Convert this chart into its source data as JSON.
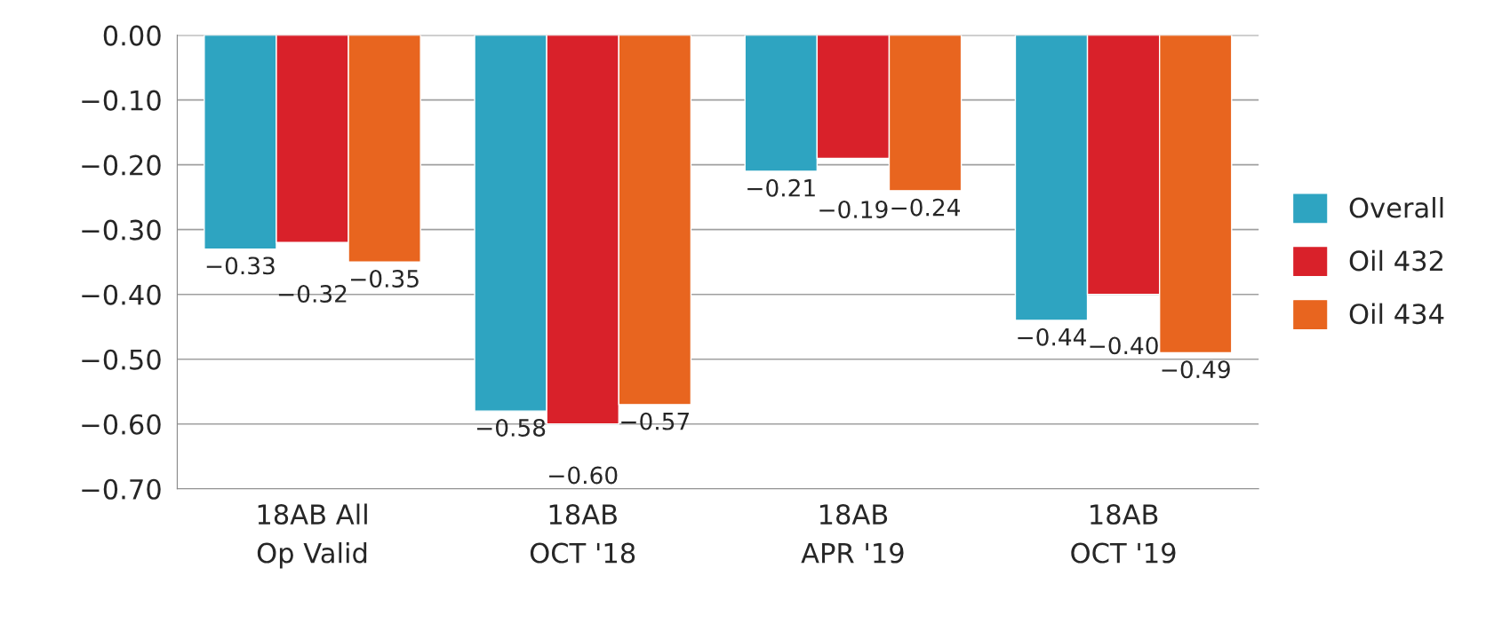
{
  "chart_data": {
    "type": "bar",
    "categories": [
      "18AB All\nOp Valid",
      "18AB\nOCT '18",
      "18AB\nAPR '19",
      "18AB\nOCT '19"
    ],
    "series": [
      {
        "name": "Overall",
        "color": "#2ea4c1",
        "values": [
          -0.33,
          -0.58,
          -0.21,
          -0.44
        ],
        "value_labels": [
          "−0.33",
          "−0.58",
          "−0.21",
          "−0.44"
        ]
      },
      {
        "name": "Oil 432",
        "color": "#d9212a",
        "values": [
          -0.32,
          -0.6,
          -0.19,
          -0.4
        ],
        "value_labels": [
          "−0.32",
          "−0.60",
          "−0.19",
          "−0.40"
        ]
      },
      {
        "name": "Oil 434",
        "color": "#e8651f",
        "values": [
          -0.35,
          -0.57,
          -0.24,
          -0.49
        ],
        "value_labels": [
          "−0.35",
          "−0.57",
          "−0.24",
          "−0.49"
        ]
      }
    ],
    "ylim": [
      -0.7,
      0
    ],
    "yticks": [
      {
        "value": 0,
        "label": "0.00"
      },
      {
        "value": -0.1,
        "label": "−0.10"
      },
      {
        "value": -0.2,
        "label": "−0.20"
      },
      {
        "value": -0.3,
        "label": "−0.30"
      },
      {
        "value": -0.4,
        "label": "−0.40"
      },
      {
        "value": -0.5,
        "label": "−0.50"
      },
      {
        "value": -0.6,
        "label": "−0.60"
      },
      {
        "value": -0.7,
        "label": "−0.70"
      }
    ],
    "grid": "y",
    "legend": "right"
  }
}
